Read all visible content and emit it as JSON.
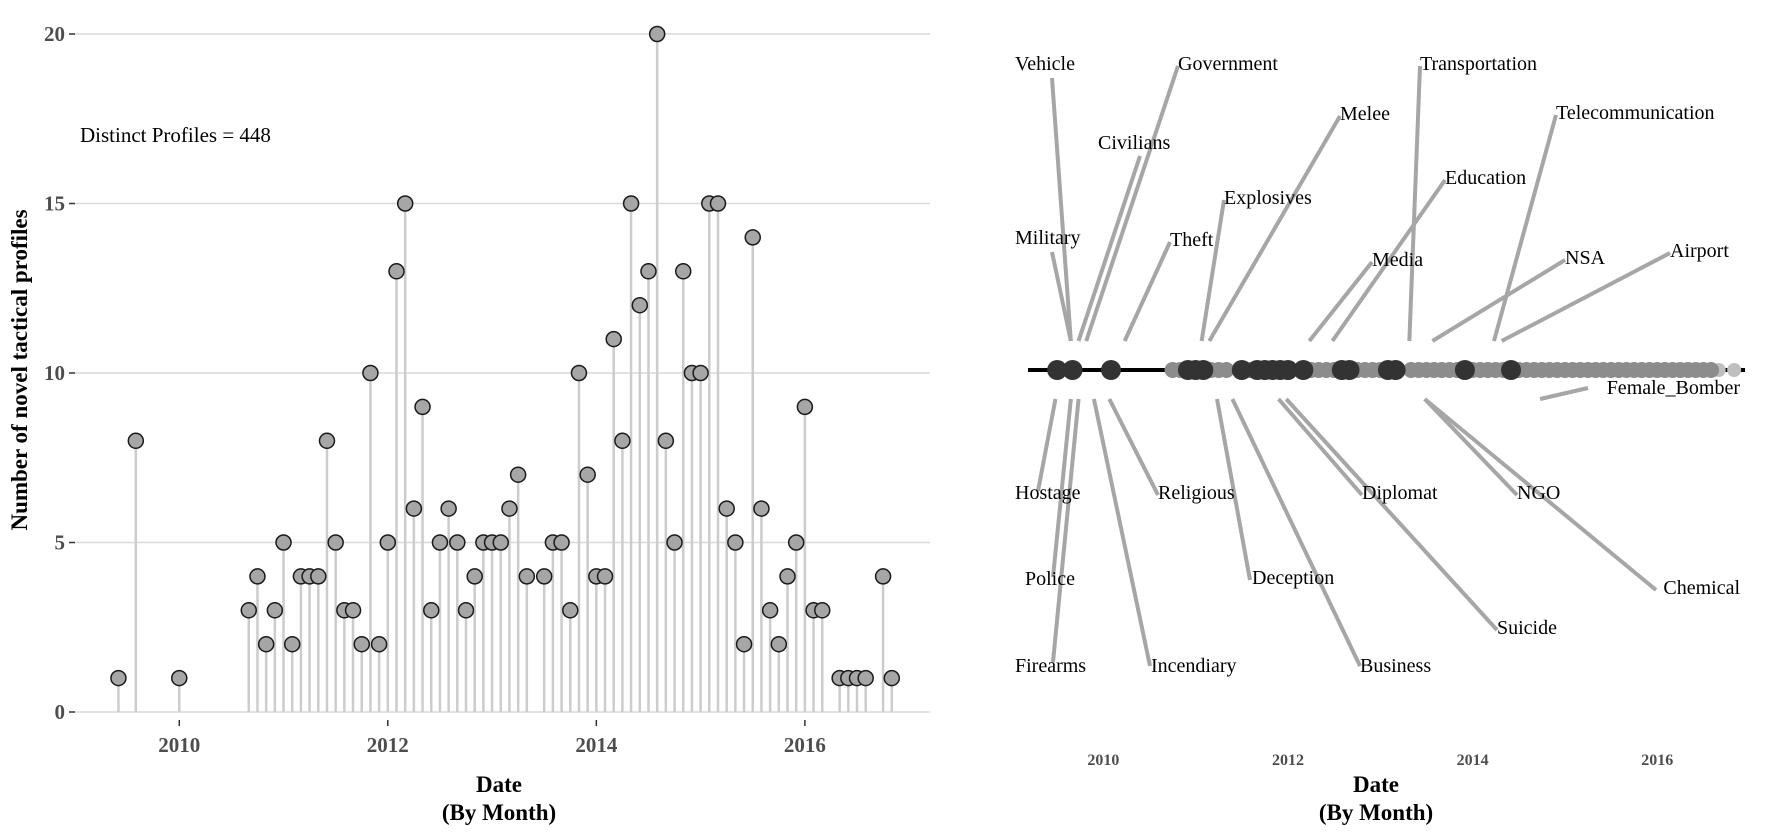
{
  "chart_data": [
    {
      "type": "lollipop",
      "xlabel_line1": "Date",
      "xlabel_line2": "(By Month)",
      "ylabel": "Number of novel tactical profiles",
      "annotation": "Distinct Profiles = 448",
      "xlim": [
        2009.0,
        2017.2
      ],
      "ylim": [
        0,
        20
      ],
      "x_ticks": [
        2010,
        2012,
        2014,
        2016
      ],
      "y_ticks": [
        0,
        5,
        10,
        15,
        20
      ],
      "grid": "horizontal",
      "points": [
        {
          "x": "2009-06",
          "y": 1
        },
        {
          "x": "2009-08",
          "y": 8
        },
        {
          "x": "2010-01",
          "y": 1
        },
        {
          "x": "2010-09",
          "y": 3
        },
        {
          "x": "2010-10",
          "y": 4
        },
        {
          "x": "2010-11",
          "y": 2
        },
        {
          "x": "2010-12",
          "y": 3
        },
        {
          "x": "2011-01",
          "y": 5
        },
        {
          "x": "2011-02",
          "y": 2
        },
        {
          "x": "2011-03",
          "y": 4
        },
        {
          "x": "2011-04",
          "y": 4
        },
        {
          "x": "2011-05",
          "y": 4
        },
        {
          "x": "2011-06",
          "y": 8
        },
        {
          "x": "2011-07",
          "y": 5
        },
        {
          "x": "2011-08",
          "y": 3
        },
        {
          "x": "2011-09",
          "y": 3
        },
        {
          "x": "2011-10",
          "y": 2
        },
        {
          "x": "2011-11",
          "y": 10
        },
        {
          "x": "2011-12",
          "y": 2
        },
        {
          "x": "2012-01",
          "y": 5
        },
        {
          "x": "2012-02",
          "y": 13
        },
        {
          "x": "2012-03",
          "y": 15
        },
        {
          "x": "2012-04",
          "y": 6
        },
        {
          "x": "2012-05",
          "y": 9
        },
        {
          "x": "2012-06",
          "y": 3
        },
        {
          "x": "2012-07",
          "y": 5
        },
        {
          "x": "2012-08",
          "y": 6
        },
        {
          "x": "2012-09",
          "y": 5
        },
        {
          "x": "2012-10",
          "y": 3
        },
        {
          "x": "2012-11",
          "y": 4
        },
        {
          "x": "2012-12",
          "y": 5
        },
        {
          "x": "2013-01",
          "y": 5
        },
        {
          "x": "2013-02",
          "y": 5
        },
        {
          "x": "2013-03",
          "y": 6
        },
        {
          "x": "2013-04",
          "y": 7
        },
        {
          "x": "2013-05",
          "y": 4
        },
        {
          "x": "2013-07",
          "y": 4
        },
        {
          "x": "2013-08",
          "y": 5
        },
        {
          "x": "2013-09",
          "y": 5
        },
        {
          "x": "2013-10",
          "y": 3
        },
        {
          "x": "2013-11",
          "y": 10
        },
        {
          "x": "2013-12",
          "y": 7
        },
        {
          "x": "2014-01",
          "y": 4
        },
        {
          "x": "2014-02",
          "y": 4
        },
        {
          "x": "2014-03",
          "y": 11
        },
        {
          "x": "2014-04",
          "y": 8
        },
        {
          "x": "2014-05",
          "y": 15
        },
        {
          "x": "2014-06",
          "y": 12
        },
        {
          "x": "2014-07",
          "y": 13
        },
        {
          "x": "2014-08",
          "y": 20
        },
        {
          "x": "2014-09",
          "y": 8
        },
        {
          "x": "2014-10",
          "y": 5
        },
        {
          "x": "2014-11",
          "y": 13
        },
        {
          "x": "2014-12",
          "y": 10
        },
        {
          "x": "2015-01",
          "y": 10
        },
        {
          "x": "2015-02",
          "y": 15
        },
        {
          "x": "2015-03",
          "y": 15
        },
        {
          "x": "2015-04",
          "y": 6
        },
        {
          "x": "2015-05",
          "y": 5
        },
        {
          "x": "2015-06",
          "y": 2
        },
        {
          "x": "2015-07",
          "y": 14
        },
        {
          "x": "2015-08",
          "y": 6
        },
        {
          "x": "2015-09",
          "y": 3
        },
        {
          "x": "2015-10",
          "y": 2
        },
        {
          "x": "2015-11",
          "y": 4
        },
        {
          "x": "2015-12",
          "y": 5
        },
        {
          "x": "2016-01",
          "y": 9
        },
        {
          "x": "2016-02",
          "y": 3
        },
        {
          "x": "2016-03",
          "y": 3
        },
        {
          "x": "2016-05",
          "y": 1
        },
        {
          "x": "2016-06",
          "y": 1
        },
        {
          "x": "2016-07",
          "y": 1
        },
        {
          "x": "2016-08",
          "y": 1
        },
        {
          "x": "2016-10",
          "y": 4
        },
        {
          "x": "2016-11",
          "y": 1
        }
      ],
      "colors": {
        "point_fill": "#a6a6a6",
        "point_stroke": "#1a1a1a",
        "stem": "#cccccc",
        "grid": "#d9d9d9"
      }
    },
    {
      "type": "timeline",
      "xlabel_line1": "Date",
      "xlabel_line2": "(By Month)",
      "xlim": [
        2009.0,
        2017.2
      ],
      "x_ticks": [
        2010,
        2012,
        2014,
        2016
      ],
      "dark_points": [
        "2009-07",
        "2009-09",
        "2010-02",
        "2010-12",
        "2011-01",
        "2011-02",
        "2011-07",
        "2011-09",
        "2011-10",
        "2011-11",
        "2011-12",
        "2012-01",
        "2012-03",
        "2012-08",
        "2012-09",
        "2013-02",
        "2013-03",
        "2013-12",
        "2014-06"
      ],
      "light_points": [
        "2010-10",
        "2010-11",
        "2011-03",
        "2011-04",
        "2011-05",
        "2011-08",
        "2012-04",
        "2012-05",
        "2012-06",
        "2012-07",
        "2012-10",
        "2012-11",
        "2012-12",
        "2013-01",
        "2013-05",
        "2013-06",
        "2013-07",
        "2013-08",
        "2013-09",
        "2013-10",
        "2013-11",
        "2014-01",
        "2014-02",
        "2014-03",
        "2014-04",
        "2014-05",
        "2014-07",
        "2014-08",
        "2014-09",
        "2014-10",
        "2014-11",
        "2014-12",
        "2015-01",
        "2015-02",
        "2015-03",
        "2015-04",
        "2015-05",
        "2015-06",
        "2015-07",
        "2015-08",
        "2015-09",
        "2015-10",
        "2015-11",
        "2015-12",
        "2016-01",
        "2016-02",
        "2016-03",
        "2016-04",
        "2016-05",
        "2016-06",
        "2016-07",
        "2016-08"
      ],
      "faint_points": [
        "2016-01",
        "2016-03",
        "2016-05",
        "2016-07",
        "2016-09",
        "2016-11"
      ],
      "labels_above": [
        {
          "text": "Vehicle",
          "anchor": "2009-08"
        },
        {
          "text": "Government",
          "anchor": "2009-10"
        },
        {
          "text": "Transportation",
          "anchor": "2013-04"
        },
        {
          "text": "Melee",
          "anchor": "2011-02"
        },
        {
          "text": "Telecommunication",
          "anchor": "2014-03"
        },
        {
          "text": "Civilians",
          "anchor": "2009-09"
        },
        {
          "text": "Education",
          "anchor": "2012-06"
        },
        {
          "text": "Explosives",
          "anchor": "2011-01"
        },
        {
          "text": "Military",
          "anchor": "2009-08"
        },
        {
          "text": "Theft",
          "anchor": "2010-03"
        },
        {
          "text": "Media",
          "anchor": "2012-03"
        },
        {
          "text": "NSA",
          "anchor": "2013-07"
        },
        {
          "text": "Airport",
          "anchor": "2014-04"
        }
      ],
      "labels_below": [
        {
          "text": "Female_Bomber",
          "anchor": "2014-09"
        },
        {
          "text": "Hostage",
          "anchor": "2009-06"
        },
        {
          "text": "Religious",
          "anchor": "2010-01"
        },
        {
          "text": "Diplomat",
          "anchor": "2011-11"
        },
        {
          "text": "NGO",
          "anchor": "2013-06"
        },
        {
          "text": "Chemical",
          "anchor": "2013-06"
        },
        {
          "text": "Police",
          "anchor": "2009-08"
        },
        {
          "text": "Deception",
          "anchor": "2011-03"
        },
        {
          "text": "Suicide",
          "anchor": "2011-12"
        },
        {
          "text": "Firearms",
          "anchor": "2009-09"
        },
        {
          "text": "Incendiary",
          "anchor": "2009-11"
        },
        {
          "text": "Business",
          "anchor": "2011-05"
        }
      ],
      "colors": {
        "dark": "#333333",
        "light": "#8c8c8c",
        "faint": "#bfbfbf",
        "leader": "#a6a6a6",
        "baseline": "#000000"
      }
    }
  ]
}
